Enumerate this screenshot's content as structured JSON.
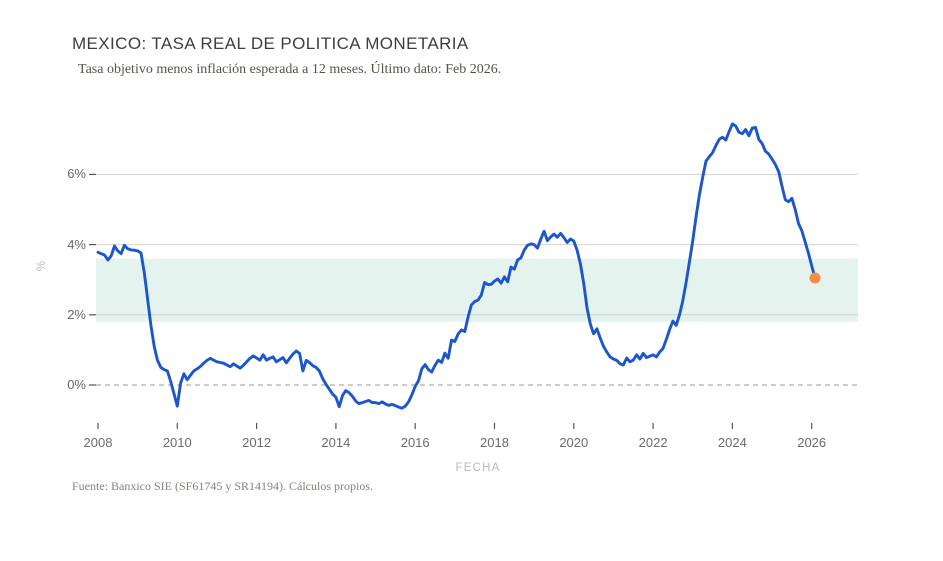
{
  "header": {
    "title": "MEXICO: TASA REAL DE POLITICA MONETARIA",
    "subtitle": "Tasa objetivo menos inflación esperada a 12 meses. Último dato: Feb 2026."
  },
  "footer": {
    "source": "Fuente: Banxico SIE (SF61745 y SR14194). Cálculos propios."
  },
  "colors": {
    "line_blue": "#1c56cd",
    "endpoint_orange": "#f68c3e",
    "band_mint": "#e5f3ee",
    "gridline": "#d2d2d2",
    "zero_line": "#9a9a9a",
    "tick_mark": "#555555"
  },
  "chart_data": {
    "type": "line",
    "title": "MEXICO: TASA REAL DE POLITICA MONETARIA",
    "subtitle": "Tasa objetivo menos inflación esperada a 12 meses. Último dato: Feb 2026.",
    "xlabel": "FECHA",
    "ylabel": "%",
    "xlim": [
      2007.9,
      2027.2
    ],
    "ylim": [
      -1.35,
      7.9
    ],
    "grid": "horizontal",
    "x_ticks": [
      2008,
      2010,
      2012,
      2014,
      2016,
      2018,
      2020,
      2022,
      2024,
      2026
    ],
    "x_tick_labels": [
      "2008",
      "2010",
      "2012",
      "2014",
      "2016",
      "2018",
      "2020",
      "2022",
      "2024",
      "2026"
    ],
    "y_ticks": [
      0,
      2,
      4,
      6
    ],
    "y_tick_labels": [
      "0%",
      "2%",
      "4%",
      "6%"
    ],
    "zero_line": {
      "value": 0,
      "style": "dashed"
    },
    "band": {
      "from": 1.8,
      "to": 3.6,
      "meaning": "rango sombreado"
    },
    "series": [
      {
        "name": "Tasa real de política monetaria",
        "frequency": "monthly",
        "start_year": 2008,
        "start_month": 1,
        "values": [
          3.78,
          3.74,
          3.7,
          3.56,
          3.68,
          3.96,
          3.82,
          3.74,
          3.98,
          3.88,
          3.85,
          3.84,
          3.82,
          3.76,
          3.2,
          2.45,
          1.7,
          1.1,
          0.7,
          0.5,
          0.44,
          0.4,
          0.1,
          -0.25,
          -0.6,
          0.05,
          0.32,
          0.15,
          0.28,
          0.4,
          0.46,
          0.53,
          0.62,
          0.7,
          0.76,
          0.71,
          0.66,
          0.64,
          0.62,
          0.57,
          0.52,
          0.6,
          0.54,
          0.48,
          0.56,
          0.66,
          0.76,
          0.83,
          0.77,
          0.71,
          0.86,
          0.71,
          0.76,
          0.8,
          0.66,
          0.72,
          0.78,
          0.63,
          0.76,
          0.88,
          0.97,
          0.9,
          0.4,
          0.7,
          0.64,
          0.55,
          0.5,
          0.4,
          0.18,
          0.02,
          -0.12,
          -0.26,
          -0.35,
          -0.62,
          -0.3,
          -0.16,
          -0.22,
          -0.32,
          -0.46,
          -0.53,
          -0.5,
          -0.47,
          -0.44,
          -0.5,
          -0.5,
          -0.53,
          -0.48,
          -0.54,
          -0.58,
          -0.55,
          -0.59,
          -0.63,
          -0.66,
          -0.6,
          -0.48,
          -0.28,
          -0.04,
          0.12,
          0.46,
          0.58,
          0.44,
          0.37,
          0.56,
          0.71,
          0.64,
          0.91,
          0.76,
          1.28,
          1.24,
          1.46,
          1.57,
          1.52,
          1.94,
          2.28,
          2.38,
          2.42,
          2.56,
          2.92,
          2.86,
          2.87,
          2.96,
          3.02,
          2.9,
          3.08,
          2.94,
          3.36,
          3.3,
          3.56,
          3.62,
          3.84,
          3.98,
          4.02,
          4.0,
          3.9,
          4.16,
          4.38,
          4.11,
          4.22,
          4.3,
          4.21,
          4.32,
          4.2,
          4.06,
          4.16,
          4.1,
          3.84,
          3.45,
          2.9,
          2.2,
          1.74,
          1.46,
          1.6,
          1.34,
          1.1,
          0.94,
          0.8,
          0.74,
          0.7,
          0.6,
          0.57,
          0.77,
          0.66,
          0.71,
          0.86,
          0.74,
          0.9,
          0.78,
          0.82,
          0.86,
          0.8,
          0.94,
          1.04,
          1.3,
          1.58,
          1.82,
          1.7,
          2.0,
          2.4,
          2.92,
          3.5,
          4.12,
          4.8,
          5.42,
          5.92,
          6.38,
          6.5,
          6.62,
          6.82,
          7.0,
          7.06,
          6.98,
          7.22,
          7.44,
          7.38,
          7.2,
          7.16,
          7.28,
          7.1,
          7.32,
          7.34,
          7.0,
          6.88,
          6.66,
          6.58,
          6.44,
          6.28,
          6.08,
          5.66,
          5.28,
          5.22,
          5.32,
          5.0,
          4.6,
          4.4,
          4.08,
          3.76,
          3.4,
          3.05
        ]
      }
    ],
    "last_point": {
      "date": "Feb 2026",
      "value": 3.05
    }
  }
}
